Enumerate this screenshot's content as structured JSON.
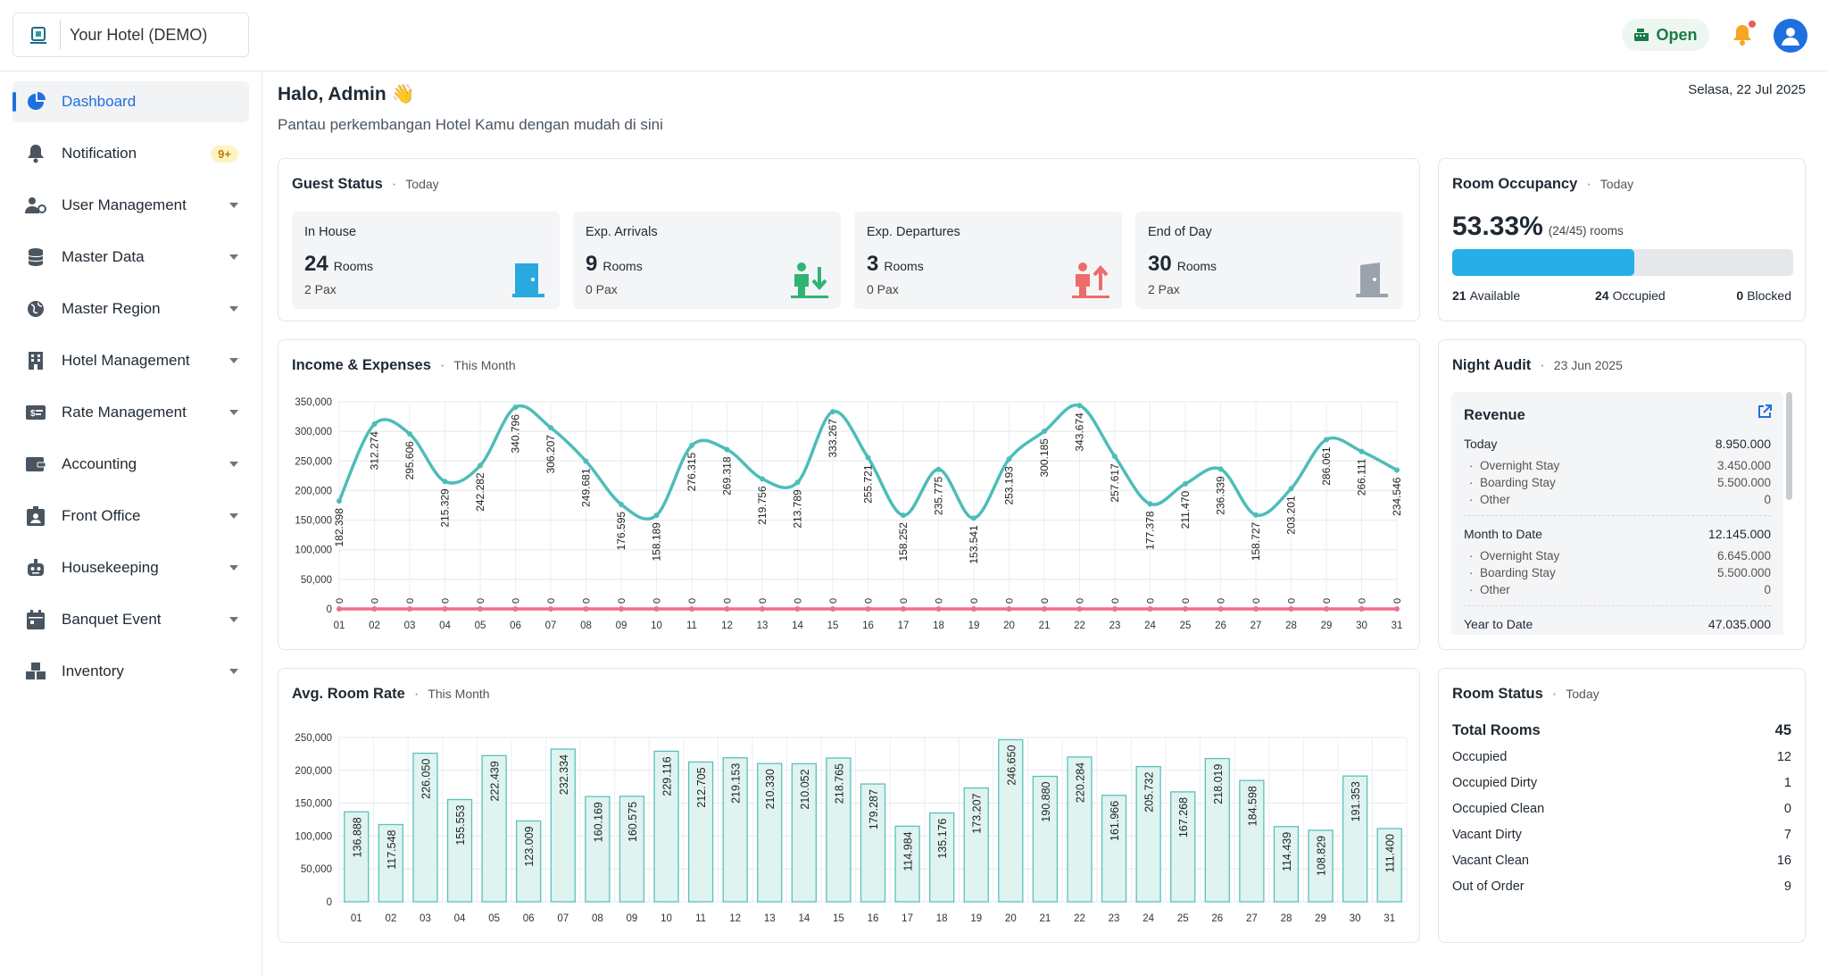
{
  "topbar": {
    "hotel_name": "Your Hotel (DEMO)",
    "status_label": "Open",
    "icons": [
      "hotel-logo-icon",
      "cash-register-icon",
      "bell-icon",
      "user-avatar-icon"
    ]
  },
  "sidebar": {
    "items": [
      {
        "label": "Dashboard",
        "icon": "pie-chart-icon",
        "active": true
      },
      {
        "label": "Notification",
        "icon": "bell-icon",
        "badge": "9+"
      },
      {
        "label": "User Management",
        "icon": "users-gear-icon"
      },
      {
        "label": "Master Data",
        "icon": "database-icon"
      },
      {
        "label": "Master Region",
        "icon": "globe-icon"
      },
      {
        "label": "Hotel Management",
        "icon": "building-icon"
      },
      {
        "label": "Rate Management",
        "icon": "money-card-icon"
      },
      {
        "label": "Accounting",
        "icon": "wallet-icon"
      },
      {
        "label": "Front Office",
        "icon": "id-badge-icon"
      },
      {
        "label": "Housekeeping",
        "icon": "robot-icon"
      },
      {
        "label": "Banquet Event",
        "icon": "calendar-icon"
      },
      {
        "label": "Inventory",
        "icon": "boxes-icon"
      }
    ]
  },
  "header": {
    "greeting": "Halo, Admin 👋",
    "subtitle": "Pantau perkembangan Hotel Kamu dengan mudah di sini",
    "date": "Selasa, 22 Jul 2025"
  },
  "guest_status": {
    "title": "Guest Status",
    "period": "Today",
    "boxes": [
      {
        "label": "In House",
        "count": "24",
        "unit": "Rooms",
        "pax": "2 Pax",
        "color": "#2aa8e0"
      },
      {
        "label": "Exp. Arrivals",
        "count": "9",
        "unit": "Rooms",
        "pax": "0 Pax",
        "color": "#2fb573"
      },
      {
        "label": "Exp. Departures",
        "count": "3",
        "unit": "Rooms",
        "pax": "0 Pax",
        "color": "#ef6b6b"
      },
      {
        "label": "End of Day",
        "count": "30",
        "unit": "Rooms",
        "pax": "2 Pax",
        "color": "#9aa3ad"
      }
    ]
  },
  "room_occupancy": {
    "title": "Room Occupancy",
    "period": "Today",
    "percent": "53.33%",
    "detail": "(24/45) rooms",
    "fill_fraction": 0.5333,
    "available_count": "21",
    "available_label": "Available",
    "occupied_count": "24",
    "occupied_label": "Occupied",
    "blocked_count": "0",
    "blocked_label": "Blocked"
  },
  "income_expenses": {
    "title": "Income & Expenses",
    "period": "This Month"
  },
  "avg_room_rate": {
    "title": "Avg. Room Rate",
    "period": "This Month"
  },
  "night_audit": {
    "title": "Night Audit",
    "date": "23 Jun 2025",
    "section_title": "Revenue",
    "today_label": "Today",
    "today_value": "8.950.000",
    "today_items": [
      {
        "label": "Overnight Stay",
        "value": "3.450.000"
      },
      {
        "label": "Boarding Stay",
        "value": "5.500.000"
      },
      {
        "label": "Other",
        "value": "0"
      }
    ],
    "mtd_label": "Month to Date",
    "mtd_value": "12.145.000",
    "mtd_items": [
      {
        "label": "Overnight Stay",
        "value": "6.645.000"
      },
      {
        "label": "Boarding Stay",
        "value": "5.500.000"
      },
      {
        "label": "Other",
        "value": "0"
      }
    ],
    "ytd_label": "Year to Date",
    "ytd_value": "47.035.000"
  },
  "room_status": {
    "title": "Room Status",
    "period": "Today",
    "total_label": "Total Rooms",
    "total_value": "45",
    "rows": [
      {
        "label": "Occupied",
        "value": "12"
      },
      {
        "label": "Occupied Dirty",
        "value": "1"
      },
      {
        "label": "Occupied Clean",
        "value": "0"
      },
      {
        "label": "Vacant Dirty",
        "value": "7"
      },
      {
        "label": "Vacant Clean",
        "value": "16"
      },
      {
        "label": "Out of Order",
        "value": "9"
      }
    ]
  },
  "chart_data": [
    {
      "type": "line",
      "title": "Income & Expenses",
      "x": [
        "01",
        "02",
        "03",
        "04",
        "05",
        "06",
        "07",
        "08",
        "09",
        "10",
        "11",
        "12",
        "13",
        "14",
        "15",
        "16",
        "17",
        "18",
        "19",
        "20",
        "21",
        "22",
        "23",
        "24",
        "25",
        "26",
        "27",
        "28",
        "29",
        "30",
        "31"
      ],
      "ylim": [
        0,
        350000
      ],
      "yticks": [
        "0",
        "50,000",
        "100,000",
        "150,000",
        "200,000",
        "250,000",
        "300,000",
        "350,000"
      ],
      "grid": true,
      "series": [
        {
          "color": "#4dbdb7",
          "values": [
            182398,
            312274,
            295606,
            215329,
            242282,
            340796,
            306207,
            249681,
            176595,
            158189,
            276315,
            269318,
            219756,
            213789,
            333267,
            255721,
            158252,
            235775,
            153541,
            253193,
            300185,
            343674,
            257617,
            177378,
            211470,
            236339,
            158727,
            203201,
            286061,
            266111,
            234546
          ],
          "labels": [
            "182.398",
            "312.274",
            "295.606",
            "215.329",
            "242.282",
            "340.796",
            "306.207",
            "249.681",
            "176.595",
            "158.189",
            "276.315",
            "269.318",
            "219.756",
            "213.789",
            "333.267",
            "255.721",
            "158.252",
            "235.775",
            "153.541",
            "253.193",
            "300.185",
            "343.674",
            "257.617",
            "177.378",
            "211.470",
            "236.339",
            "158.727",
            "203.201",
            "286.061",
            "266.111",
            "234.546"
          ]
        },
        {
          "color": "#ef6f8c",
          "values": [
            0,
            0,
            0,
            0,
            0,
            0,
            0,
            0,
            0,
            0,
            0,
            0,
            0,
            0,
            0,
            0,
            0,
            0,
            0,
            0,
            0,
            0,
            0,
            0,
            0,
            0,
            0,
            0,
            0,
            0,
            0
          ],
          "labels": [
            "0",
            "0",
            "0",
            "0",
            "0",
            "0",
            "0",
            "0",
            "0",
            "0",
            "0",
            "0",
            "0",
            "0",
            "0",
            "0",
            "0",
            "0",
            "0",
            "0",
            "0",
            "0",
            "0",
            "0",
            "0",
            "0",
            "0",
            "0",
            "0",
            "0",
            "0"
          ]
        }
      ]
    },
    {
      "type": "bar",
      "title": "Avg. Room Rate",
      "categories": [
        "01",
        "02",
        "03",
        "04",
        "05",
        "06",
        "07",
        "08",
        "09",
        "10",
        "11",
        "12",
        "13",
        "14",
        "15",
        "16",
        "17",
        "18",
        "19",
        "20",
        "21",
        "22",
        "23",
        "24",
        "25",
        "26",
        "27",
        "28",
        "29",
        "30",
        "31"
      ],
      "ylim": [
        0,
        250000
      ],
      "yticks": [
        "0",
        "50,000",
        "100,000",
        "150,000",
        "200,000",
        "250,000"
      ],
      "grid": true,
      "values": [
        136888,
        117548,
        226050,
        155553,
        222439,
        123009,
        232334,
        160169,
        160575,
        229116,
        212705,
        219153,
        210330,
        210052,
        218765,
        179287,
        114984,
        135176,
        173207,
        246650,
        190880,
        220284,
        161966,
        205732,
        167268,
        218019,
        184598,
        114439,
        108829,
        191353,
        111400
      ],
      "labels": [
        "136.888",
        "117.548",
        "226.050",
        "155.553",
        "222.439",
        "123.009",
        "232.334",
        "160.169",
        "160.575",
        "229.116",
        "212.705",
        "219.153",
        "210.330",
        "210.052",
        "218.765",
        "179.287",
        "114.984",
        "135.176",
        "173.207",
        "246.650",
        "190.880",
        "220.284",
        "161.966",
        "205.732",
        "167.268",
        "218.019",
        "184.598",
        "114.439",
        "108.829",
        "191.353",
        "111.400"
      ],
      "bar_fill": "#dff3f1",
      "bar_stroke": "#59c2bb"
    }
  ]
}
